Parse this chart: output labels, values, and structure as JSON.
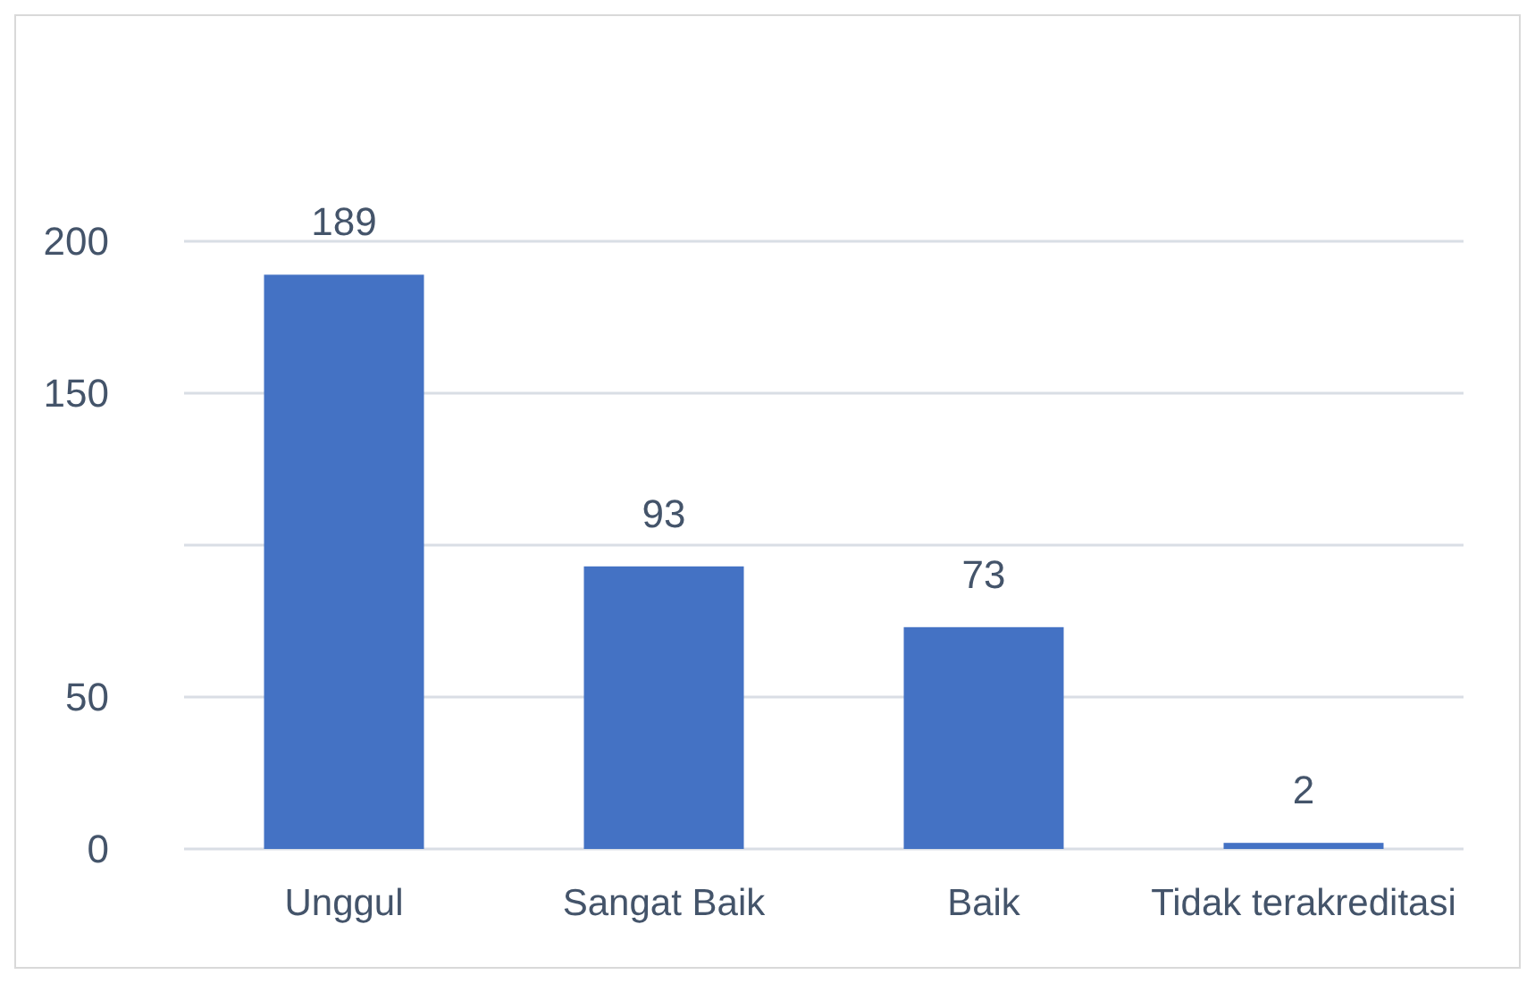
{
  "chart_data": {
    "type": "bar",
    "categories": [
      "Unggul",
      "Sangat Baik",
      "Baik",
      "Tidak terakreditasi"
    ],
    "values": [
      189,
      93,
      73,
      2
    ],
    "color": "#4472c4",
    "ylim": [
      0,
      200
    ],
    "yticks": [
      0,
      50,
      {
        "value": 100,
        "label": null
      },
      150,
      200
    ],
    "grid": "y",
    "data_labels": true
  }
}
